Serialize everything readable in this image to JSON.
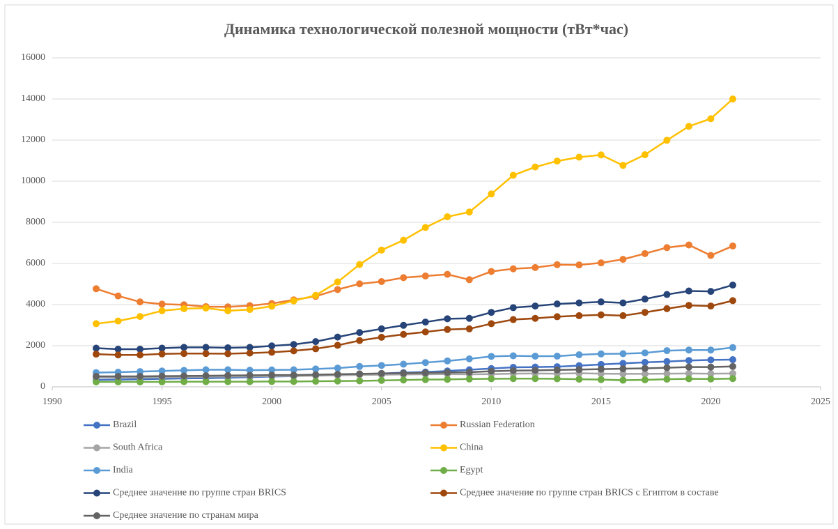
{
  "chart_data": {
    "type": "line",
    "title": "Динамика технологической полезной мощности (тВт*час)",
    "x": [
      1992,
      1993,
      1994,
      1995,
      1996,
      1997,
      1998,
      1999,
      2000,
      2001,
      2002,
      2003,
      2004,
      2005,
      2006,
      2007,
      2008,
      2009,
      2010,
      2011,
      2012,
      2013,
      2014,
      2015,
      2016,
      2017,
      2018,
      2019,
      2020,
      2021
    ],
    "series": [
      {
        "name": "Brazil",
        "color": "#4472c4",
        "values": [
          340,
          350,
          370,
          390,
          410,
          420,
          440,
          470,
          500,
          520,
          560,
          580,
          620,
          650,
          690,
          720,
          770,
          830,
          890,
          950,
          960,
          980,
          1030,
          1090,
          1140,
          1190,
          1230,
          1280,
          1310,
          1320
        ]
      },
      {
        "name": "Russian Federation",
        "color": "#ed7d31",
        "values": [
          4770,
          4420,
          4130,
          4020,
          3990,
          3900,
          3890,
          3950,
          4050,
          4230,
          4400,
          4730,
          5010,
          5120,
          5310,
          5390,
          5470,
          5210,
          5610,
          5740,
          5800,
          5940,
          5930,
          6030,
          6200,
          6480,
          6770,
          6900,
          6390,
          6850
        ]
      },
      {
        "name": "South Africa",
        "color": "#a5a5a5",
        "values": [
          460,
          450,
          450,
          460,
          480,
          490,
          500,
          510,
          520,
          530,
          540,
          560,
          580,
          590,
          600,
          610,
          620,
          610,
          620,
          640,
          650,
          640,
          660,
          640,
          630,
          630,
          640,
          650,
          640,
          650
        ]
      },
      {
        "name": "China",
        "color": "#ffc000",
        "values": [
          3070,
          3200,
          3420,
          3700,
          3800,
          3830,
          3700,
          3760,
          3920,
          4180,
          4450,
          5100,
          5950,
          6650,
          7130,
          7750,
          8270,
          8500,
          9380,
          10290,
          10690,
          10980,
          11170,
          11280,
          10770,
          11290,
          11990,
          12670,
          13040,
          14000
        ]
      },
      {
        "name": "India",
        "color": "#5b9bd5",
        "values": [
          690,
          710,
          740,
          770,
          800,
          830,
          830,
          810,
          820,
          830,
          870,
          910,
          990,
          1040,
          1100,
          1180,
          1260,
          1360,
          1480,
          1510,
          1490,
          1490,
          1560,
          1600,
          1610,
          1650,
          1760,
          1790,
          1790,
          1910
        ]
      },
      {
        "name": "Egypt",
        "color": "#70ad47",
        "values": [
          240,
          240,
          240,
          240,
          250,
          250,
          250,
          250,
          260,
          260,
          270,
          280,
          290,
          310,
          330,
          350,
          360,
          380,
          390,
          400,
          400,
          390,
          370,
          350,
          320,
          340,
          370,
          390,
          380,
          400
        ]
      },
      {
        "name": "Среднее значение по группе стран BRICS",
        "color": "#264478",
        "values": [
          1880,
          1830,
          1830,
          1880,
          1920,
          1920,
          1900,
          1920,
          1990,
          2060,
          2200,
          2420,
          2640,
          2820,
          2990,
          3150,
          3310,
          3330,
          3620,
          3850,
          3930,
          4030,
          4080,
          4130,
          4080,
          4270,
          4490,
          4660,
          4640,
          4950
        ]
      },
      {
        "name": "Среднее значение по группе стран BRICS с Египтом в составе",
        "color": "#9e480e",
        "values": [
          1590,
          1550,
          1550,
          1600,
          1620,
          1620,
          1610,
          1640,
          1680,
          1750,
          1850,
          2020,
          2250,
          2410,
          2550,
          2670,
          2790,
          2820,
          3070,
          3270,
          3330,
          3410,
          3460,
          3500,
          3460,
          3620,
          3800,
          3960,
          3930,
          4190
        ]
      },
      {
        "name": "Среднее значение по странам мира",
        "color": "#636363",
        "values": [
          510,
          510,
          510,
          520,
          530,
          540,
          550,
          560,
          570,
          570,
          590,
          610,
          630,
          650,
          660,
          680,
          700,
          710,
          760,
          790,
          800,
          820,
          840,
          860,
          880,
          900,
          930,
          960,
          960,
          990
        ]
      }
    ],
    "xlim": [
      1990,
      2025
    ],
    "xticks": [
      1990,
      1995,
      2000,
      2005,
      2010,
      2015,
      2020,
      2025
    ],
    "ylim": [
      0,
      16000
    ],
    "yticks": [
      0,
      2000,
      4000,
      6000,
      8000,
      10000,
      12000,
      14000,
      16000
    ],
    "grid": true,
    "legend": "bottom"
  }
}
